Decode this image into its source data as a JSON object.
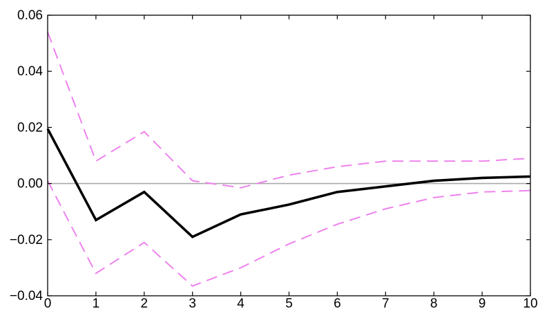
{
  "chart_data": {
    "type": "line",
    "title": "",
    "xlabel": "",
    "ylabel": "",
    "xlim": [
      0,
      10
    ],
    "ylim": [
      -0.04,
      0.06
    ],
    "x_ticks": [
      "0",
      "1",
      "2",
      "3",
      "4",
      "5",
      "6",
      "7",
      "8",
      "9",
      "10"
    ],
    "y_ticks": [
      "0.06",
      "0.04",
      "0.02",
      "0.00",
      "−0.02",
      "−0.04"
    ],
    "y_tick_values": [
      0.06,
      0.04,
      0.02,
      0.0,
      -0.02,
      -0.04
    ],
    "x": [
      0,
      1,
      2,
      3,
      4,
      5,
      6,
      7,
      8,
      9,
      10
    ],
    "zero_line": true,
    "grid": false,
    "legend": "none",
    "series": [
      {
        "role": "impulse-response",
        "style": "solid",
        "color": "#000000",
        "values": [
          0.0195,
          -0.013,
          -0.003,
          -0.019,
          -0.011,
          -0.0075,
          -0.003,
          -0.001,
          0.001,
          0.002,
          0.0025
        ]
      },
      {
        "role": "upper-band",
        "style": "dashed",
        "color": "#ee82ee",
        "values": [
          0.054,
          0.008,
          0.0185,
          0.001,
          -0.0015,
          0.003,
          0.006,
          0.008,
          0.008,
          0.008,
          0.009
        ]
      },
      {
        "role": "lower-band",
        "style": "dashed",
        "color": "#ee82ee",
        "values": [
          0.001,
          -0.032,
          -0.021,
          -0.0365,
          -0.03,
          -0.0215,
          -0.0145,
          -0.009,
          -0.005,
          -0.003,
          -0.0025
        ]
      }
    ]
  }
}
